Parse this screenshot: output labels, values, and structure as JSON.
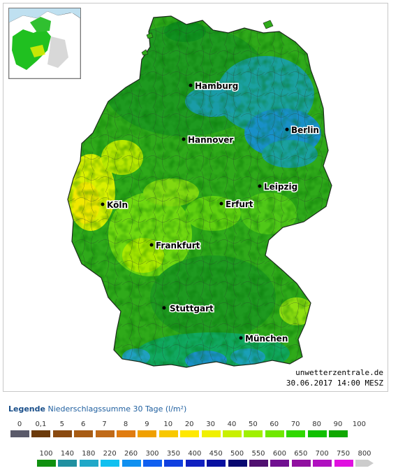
{
  "map": {
    "cities": [
      {
        "name": "Hamburg"
      },
      {
        "name": "Berlin"
      },
      {
        "name": "Hannover"
      },
      {
        "name": "Leipzig"
      },
      {
        "name": "Köln"
      },
      {
        "name": "Erfurt"
      },
      {
        "name": "Frankfurt"
      },
      {
        "name": "Stuttgart"
      },
      {
        "name": "München"
      }
    ],
    "credit_site": "unwetterzentrale.de",
    "credit_time": "30.06.2017 14:00 MESZ"
  },
  "legend": {
    "title_bold": "Legende",
    "title_rest": "Niederschlagssumme 30 Tage  (l/m²)",
    "row1_labels": [
      "0",
      "0,1",
      "5",
      "6",
      "7",
      "8",
      "9",
      "10",
      "20",
      "30",
      "40",
      "50",
      "60",
      "70",
      "80",
      "90",
      "100"
    ],
    "row1_colors": [
      "#5a5a6a",
      "#6b3a0a",
      "#8a4a10",
      "#a85c14",
      "#c06a18",
      "#e07c10",
      "#f0a000",
      "#f8c800",
      "#ffe800",
      "#f0f000",
      "#c8f000",
      "#a0f000",
      "#70e800",
      "#30d800",
      "#10c000",
      "#10a800"
    ],
    "row2_labels": [
      "100",
      "140",
      "180",
      "220",
      "260",
      "300",
      "350",
      "400",
      "450",
      "500",
      "550",
      "600",
      "650",
      "700",
      "750",
      "800"
    ],
    "row2_colors": [
      "#109010",
      "#2090a0",
      "#20a8c8",
      "#10c0f0",
      "#1090f0",
      "#1060f0",
      "#1040e0",
      "#1020c0",
      "#0810a0",
      "#080870",
      "#501070",
      "#701090",
      "#9010a0",
      "#b010c0",
      "#e010e0",
      "#cccccc"
    ]
  }
}
